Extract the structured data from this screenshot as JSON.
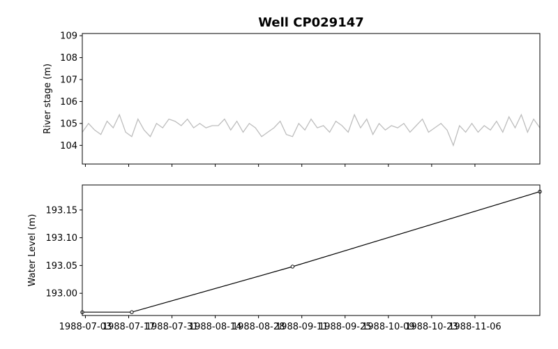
{
  "chart_data": [
    {
      "type": "line",
      "title": "Well CP029147",
      "ylabel": "River stage (m)",
      "ylim": [
        103.15,
        109.1
      ],
      "yticks": [
        104,
        105,
        106,
        107,
        108,
        109
      ],
      "xlim": [
        "1988-07-02",
        "1988-11-27"
      ],
      "grid": false,
      "series": [
        {
          "color": "#bdbdbd",
          "x": [
            "1988-07-02",
            "1988-07-04",
            "1988-07-06",
            "1988-07-08",
            "1988-07-10",
            "1988-07-12",
            "1988-07-14",
            "1988-07-16",
            "1988-07-18",
            "1988-07-20",
            "1988-07-22",
            "1988-07-24",
            "1988-07-26",
            "1988-07-28",
            "1988-07-30",
            "1988-08-01",
            "1988-08-03",
            "1988-08-05",
            "1988-08-07",
            "1988-08-09",
            "1988-08-11",
            "1988-08-13",
            "1988-08-15",
            "1988-08-17",
            "1988-08-19",
            "1988-08-21",
            "1988-08-23",
            "1988-08-25",
            "1988-08-27",
            "1988-08-29",
            "1988-08-31",
            "1988-09-02",
            "1988-09-04",
            "1988-09-06",
            "1988-09-08",
            "1988-09-10",
            "1988-09-12",
            "1988-09-14",
            "1988-09-16",
            "1988-09-18",
            "1988-09-20",
            "1988-09-22",
            "1988-09-24",
            "1988-09-26",
            "1988-09-28",
            "1988-09-30",
            "1988-10-02",
            "1988-10-04",
            "1988-10-06",
            "1988-10-08",
            "1988-10-10",
            "1988-10-12",
            "1988-10-14",
            "1988-10-16",
            "1988-10-18",
            "1988-10-20",
            "1988-10-22",
            "1988-10-24",
            "1988-10-26",
            "1988-10-28",
            "1988-10-30",
            "1988-11-01",
            "1988-11-03",
            "1988-11-05",
            "1988-11-07",
            "1988-11-09",
            "1988-11-11",
            "1988-11-13",
            "1988-11-15",
            "1988-11-17",
            "1988-11-19",
            "1988-11-21",
            "1988-11-23",
            "1988-11-25",
            "1988-11-27"
          ],
          "values": [
            104.6,
            105.0,
            104.7,
            104.5,
            105.1,
            104.8,
            105.4,
            104.6,
            104.4,
            105.2,
            104.7,
            104.4,
            105.0,
            104.8,
            105.2,
            105.1,
            104.9,
            105.2,
            104.8,
            105.0,
            104.8,
            104.9,
            104.9,
            105.2,
            104.7,
            105.1,
            104.6,
            105.0,
            104.8,
            104.4,
            104.6,
            104.8,
            105.1,
            104.5,
            104.4,
            105.0,
            104.7,
            105.2,
            104.8,
            104.9,
            104.6,
            105.1,
            104.9,
            104.6,
            105.4,
            104.8,
            105.2,
            104.5,
            105.0,
            104.7,
            104.9,
            104.8,
            105.0,
            104.6,
            104.9,
            105.2,
            104.6,
            104.8,
            105.0,
            104.7,
            104.0,
            104.9,
            104.6,
            105.0,
            104.6,
            104.9,
            104.7,
            105.1,
            104.6,
            105.3,
            104.8,
            105.4,
            104.6,
            105.2,
            104.8
          ]
        }
      ]
    },
    {
      "type": "line",
      "ylabel": "Water Level (m)",
      "ylim": [
        192.96,
        193.195
      ],
      "yticks": [
        "193.00",
        "193.05",
        "193.10",
        "193.15"
      ],
      "xlim": [
        "1988-07-02",
        "1988-11-27"
      ],
      "xticks": [
        "1988-07-03",
        "1988-07-17",
        "1988-07-31",
        "1988-08-14",
        "1988-08-28",
        "1988-09-11",
        "1988-09-25",
        "1988-10-09",
        "1988-10-23",
        "1988-11-06"
      ],
      "grid": false,
      "series": [
        {
          "color": "#000000",
          "marker": "circle",
          "x": [
            "1988-07-02",
            "1988-07-18",
            "1988-09-08",
            "1988-11-27"
          ],
          "values": [
            192.966,
            192.966,
            193.048,
            193.183
          ]
        }
      ]
    }
  ]
}
